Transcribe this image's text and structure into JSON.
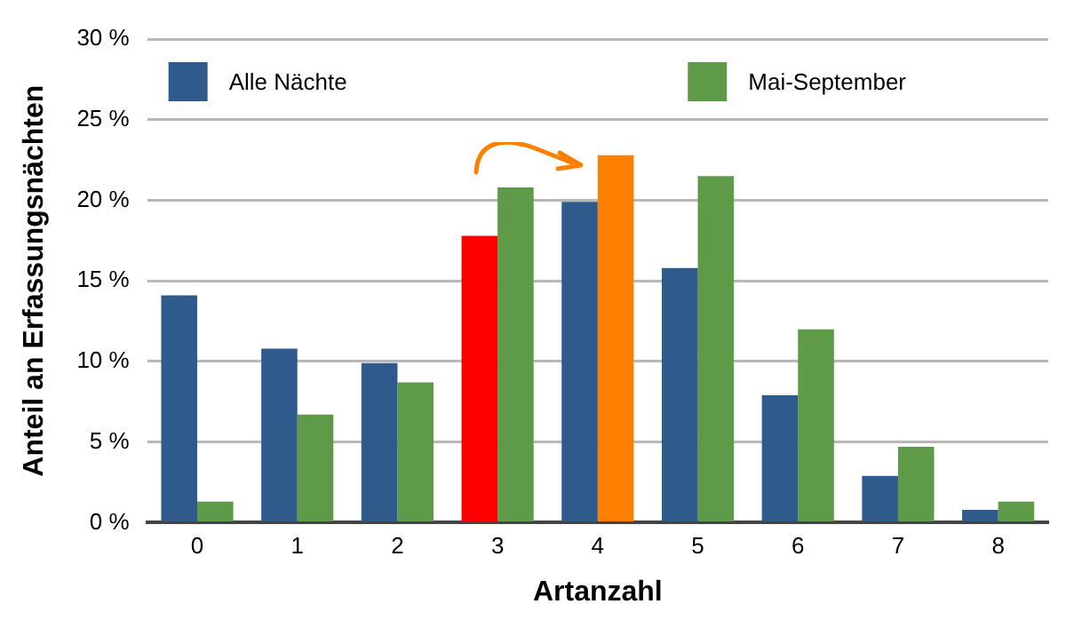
{
  "chart_data": {
    "type": "bar",
    "xlabel": "Artanzahl",
    "ylabel": "Anteil an Erfassungsnächten",
    "categories": [
      "0",
      "1",
      "2",
      "3",
      "4",
      "5",
      "6",
      "7",
      "8"
    ],
    "series": [
      {
        "name": "Alle Nächte",
        "color": "#2e5a8c",
        "colors": [
          "#2e5a8c",
          "#2e5a8c",
          "#2e5a8c",
          "#ff0000",
          "#2e5a8c",
          "#2e5a8c",
          "#2e5a8c",
          "#2e5a8c",
          "#2e5a8c"
        ],
        "values": [
          14.1,
          10.8,
          9.9,
          17.8,
          19.9,
          15.8,
          7.9,
          2.9,
          0.8
        ]
      },
      {
        "name": "Mai-September",
        "color": "#5e9a48",
        "colors": [
          "#5e9a48",
          "#5e9a48",
          "#5e9a48",
          "#5e9a48",
          "#ff8000",
          "#5e9a48",
          "#5e9a48",
          "#5e9a48",
          "#5e9a48"
        ],
        "values": [
          1.3,
          6.7,
          8.7,
          20.8,
          22.8,
          21.5,
          12.0,
          4.7,
          1.3
        ]
      }
    ],
    "ylim": [
      0,
      30
    ],
    "yticks": [
      {
        "value": 0,
        "label": "0 %"
      },
      {
        "value": 5,
        "label": "5 %"
      },
      {
        "value": 10,
        "label": "10 %"
      },
      {
        "value": 15,
        "label": "15 %"
      },
      {
        "value": 20,
        "label": "20 %"
      },
      {
        "value": 25,
        "label": "25 %"
      },
      {
        "value": 30,
        "label": "30 %"
      }
    ],
    "grid": "y",
    "legend": "top"
  }
}
